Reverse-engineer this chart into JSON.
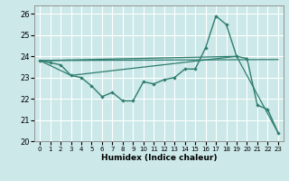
{
  "title": "",
  "xlabel": "Humidex (Indice chaleur)",
  "bg_color": "#cce8e8",
  "grid_color": "#ffffff",
  "line_color": "#2e7d6e",
  "xlim": [
    -0.5,
    23.5
  ],
  "ylim": [
    20,
    26.4
  ],
  "xticks": [
    0,
    1,
    2,
    3,
    4,
    5,
    6,
    7,
    8,
    9,
    10,
    11,
    12,
    13,
    14,
    15,
    16,
    17,
    18,
    19,
    20,
    21,
    22,
    23
  ],
  "yticks": [
    20,
    21,
    22,
    23,
    24,
    25,
    26
  ],
  "line1_x": [
    0,
    1,
    2,
    3,
    4,
    5,
    6,
    7,
    8,
    9,
    10,
    11,
    12,
    13,
    14,
    15,
    16,
    17,
    18,
    19,
    20,
    21,
    22,
    23
  ],
  "line1_y": [
    23.8,
    23.7,
    23.6,
    23.1,
    23.0,
    22.6,
    22.1,
    22.3,
    21.9,
    21.9,
    22.8,
    22.7,
    22.9,
    23.0,
    23.4,
    23.4,
    24.4,
    25.9,
    25.5,
    24.0,
    23.9,
    21.7,
    21.5,
    20.4
  ],
  "line2_x": [
    0,
    23
  ],
  "line2_y": [
    23.8,
    23.85
  ],
  "line3_x": [
    0,
    19
  ],
  "line3_y": [
    23.8,
    24.0
  ],
  "line4_x": [
    0,
    3,
    19,
    23
  ],
  "line4_y": [
    23.8,
    23.1,
    24.0,
    20.4
  ]
}
